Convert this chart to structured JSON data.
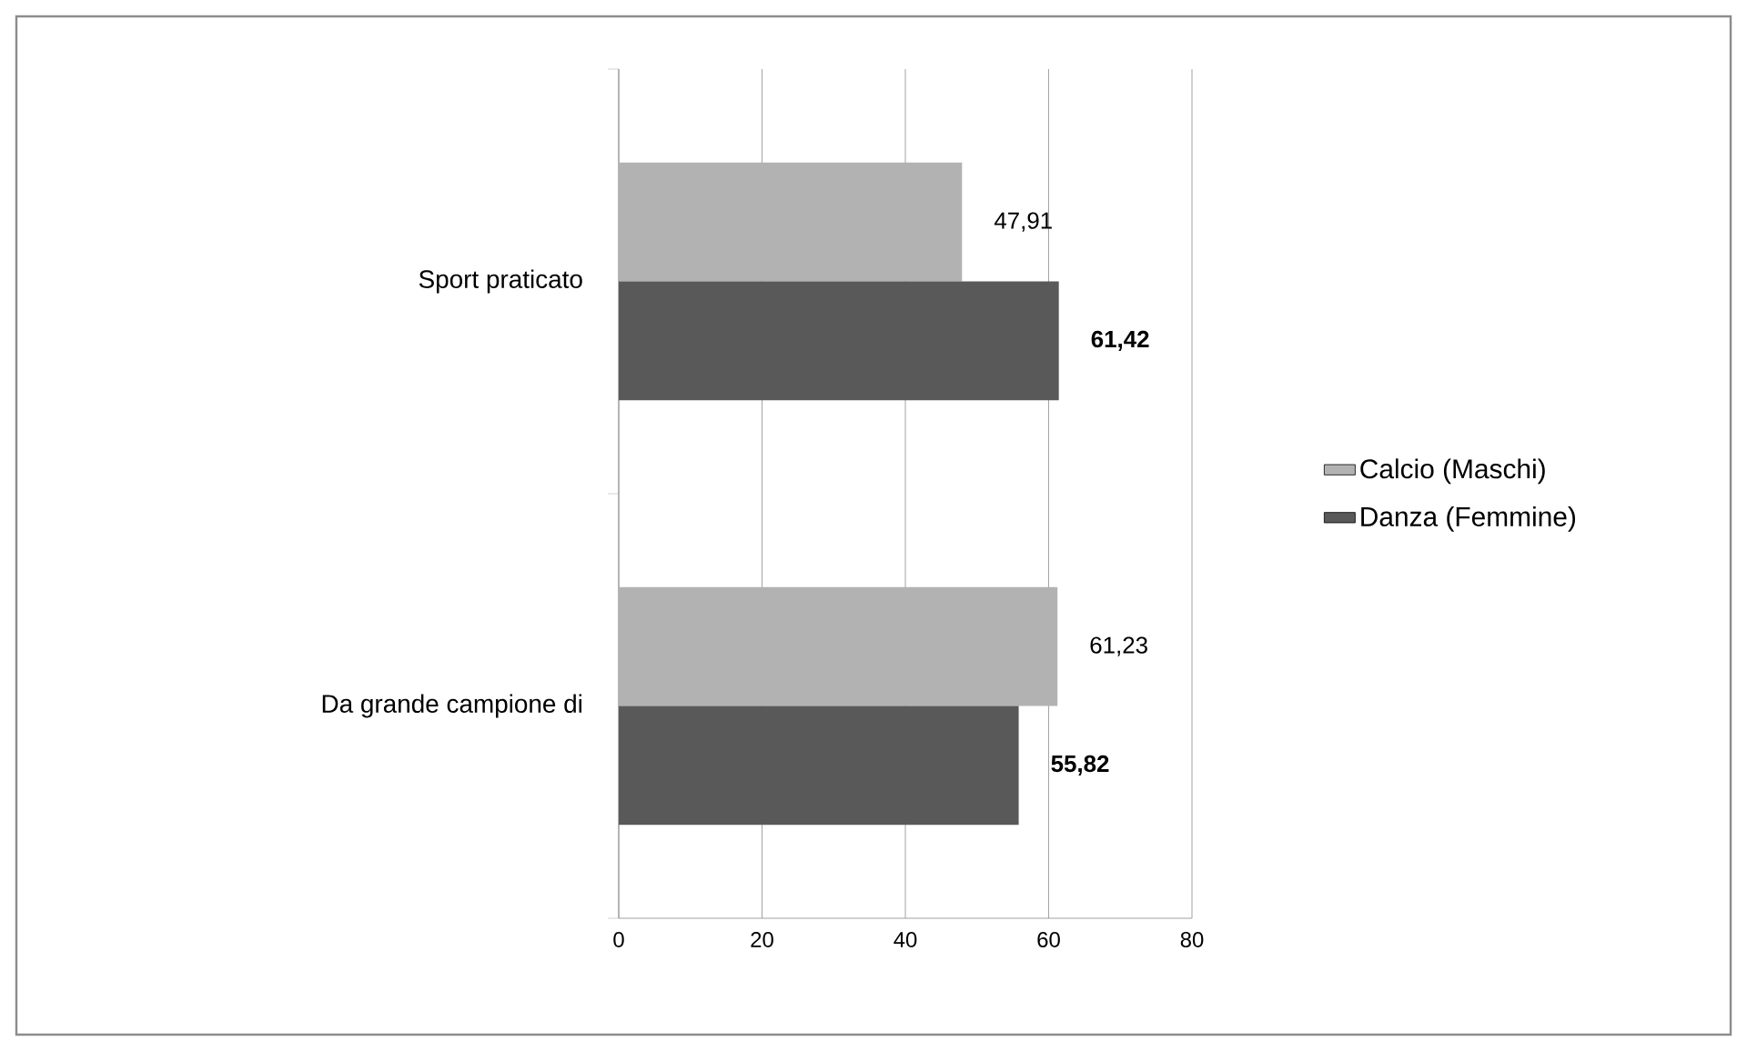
{
  "chart_data": {
    "type": "bar",
    "orientation": "horizontal",
    "categories": [
      "Sport praticato",
      "Da grande campione di"
    ],
    "series": [
      {
        "name": "Calcio (Maschi)",
        "color": "#b2b2b2",
        "values": [
          47.91,
          61.23
        ],
        "value_labels": [
          "47,91",
          "61,23"
        ]
      },
      {
        "name": "Danza (Femmine)",
        "color": "#595959",
        "values": [
          61.42,
          55.82
        ],
        "value_labels": [
          "61,42",
          "55,82"
        ]
      }
    ],
    "xlim": [
      0,
      80
    ],
    "xticks": [
      0,
      20,
      40,
      60,
      80
    ],
    "grid": "x",
    "legend": "right"
  }
}
